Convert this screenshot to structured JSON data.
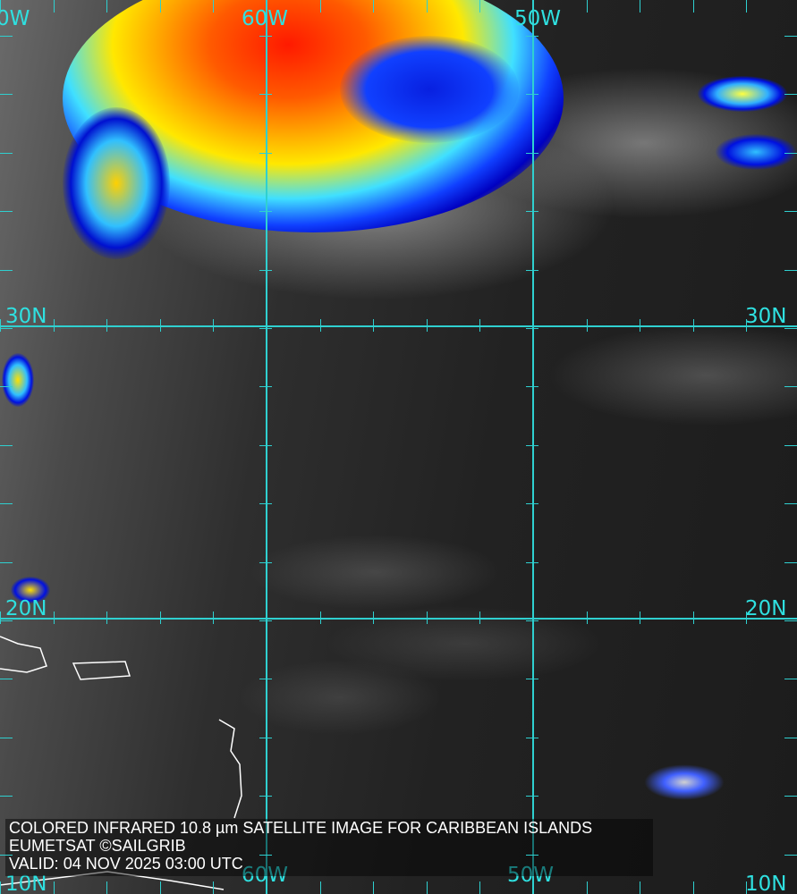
{
  "caption": {
    "line1": "COLORED INFRARED 10.8 µm SATELLITE IMAGE FOR CARIBBEAN ISLANDS",
    "line2": "EUMETSAT ©SAILGRIB",
    "line3": "VALID:  04 NOV 2025 03:00 UTC"
  },
  "labels": {
    "top_70w": "0W",
    "top_60w": "60W",
    "top_50w": "50W",
    "left_30n": "30N",
    "right_30n": "30N",
    "left_20n": "20N",
    "right_20n": "20N",
    "bottom_left_10n": "10N",
    "bottom_60w": "60W",
    "bottom_50w": "50W",
    "bottom_right_10n": "10N"
  },
  "colors": {
    "grid": "#2fd0d0",
    "cold_top": "#ff2000",
    "mid": "#ffe000",
    "low": "#0010e0"
  }
}
